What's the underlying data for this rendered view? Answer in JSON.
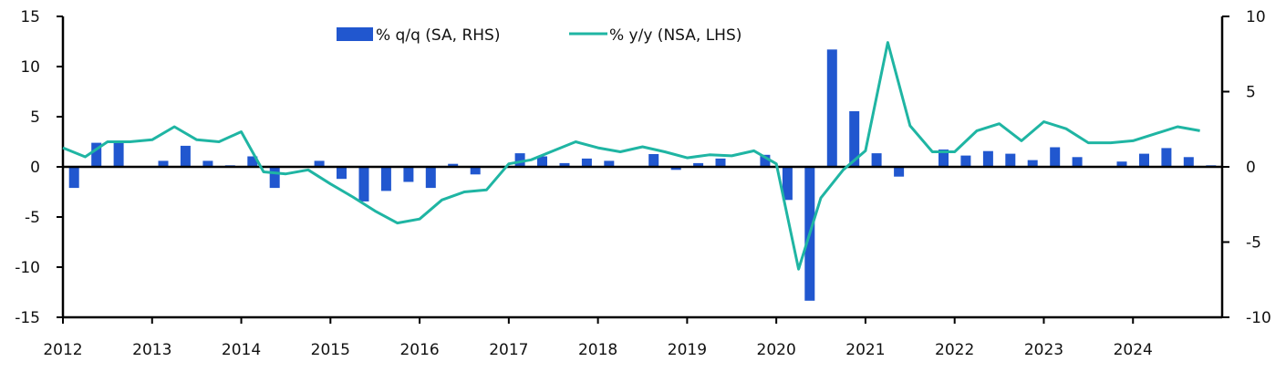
{
  "chart_data": {
    "type": "bar+line",
    "title": "",
    "x_start_year": 2012,
    "x_tick_labels": [
      "2012",
      "2013",
      "2014",
      "2015",
      "2016",
      "2017",
      "2018",
      "2019",
      "2020",
      "2021",
      "2022",
      "2023",
      "2024"
    ],
    "left_axis": {
      "ylim": [
        -15,
        15
      ],
      "ticks": [
        "15",
        "10",
        "5",
        "0",
        "-5",
        "-10",
        "-15"
      ],
      "tick_values": [
        15,
        10,
        5,
        0,
        -5,
        -10,
        -15
      ]
    },
    "right_axis": {
      "ylim": [
        -10,
        10
      ],
      "ticks": [
        "10",
        "5",
        "0",
        "-5",
        "-10"
      ],
      "tick_values": [
        10,
        5,
        0,
        -5,
        -10
      ]
    },
    "legend": {
      "position": "top-center"
    },
    "series": [
      {
        "name": "% q/q (SA, RHS)",
        "type": "bar",
        "axis": "right",
        "color": "#2157cf",
        "values": [
          -1.4,
          1.6,
          1.6,
          0,
          0.4,
          1.4,
          0.4,
          0.1,
          0.7,
          -1.4,
          0,
          0.4,
          -0.8,
          -2.3,
          -1.6,
          -1.0,
          -1.4,
          0.2,
          -0.5,
          0,
          0.9,
          0.7,
          0.25,
          0.55,
          0.4,
          0,
          0.85,
          -0.2,
          0.25,
          0.55,
          0,
          0.8,
          -2.2,
          -8.9,
          7.8,
          3.7,
          0.9,
          -0.65,
          0,
          1.15,
          0.75,
          1.05,
          0.87,
          0.45,
          1.3,
          0.65,
          0,
          0.35,
          0.87,
          1.25,
          0.65,
          0.1
        ]
      },
      {
        "name": "% y/y (NSA, LHS)",
        "type": "line",
        "axis": "left",
        "color": "#1fb5a3",
        "values": [
          1.9,
          1.0,
          2.5,
          2.5,
          2.7,
          4.0,
          2.7,
          2.5,
          3.5,
          -0.5,
          -0.7,
          -0.3,
          -1.7,
          -3.0,
          -4.4,
          -5.6,
          -5.2,
          -3.3,
          -2.5,
          -2.3,
          0.3,
          0.7,
          1.6,
          2.5,
          1.9,
          1.5,
          2.0,
          1.5,
          0.9,
          1.2,
          1.1,
          1.6,
          0.3,
          -10.2,
          -3.1,
          -0.3,
          1.6,
          12.4,
          4.1,
          1.5,
          1.5,
          3.6,
          4.3,
          2.6,
          4.5,
          3.8,
          2.4,
          2.4,
          2.6,
          3.3,
          4.0,
          3.6
        ]
      }
    ],
    "x": [
      "2012Q1",
      "2012Q2",
      "2012Q3",
      "2012Q4",
      "2013Q1",
      "2013Q2",
      "2013Q3",
      "2013Q4",
      "2014Q1",
      "2014Q2",
      "2014Q3",
      "2014Q4",
      "2015Q1",
      "2015Q2",
      "2015Q3",
      "2015Q4",
      "2016Q1",
      "2016Q2",
      "2016Q3",
      "2016Q4",
      "2017Q1",
      "2017Q2",
      "2017Q3",
      "2017Q4",
      "2018Q1",
      "2018Q2",
      "2018Q3",
      "2018Q4",
      "2019Q1",
      "2019Q2",
      "2019Q3",
      "2019Q4",
      "2020Q1",
      "2020Q2",
      "2020Q3",
      "2020Q4",
      "2021Q1",
      "2021Q2",
      "2021Q3",
      "2021Q4",
      "2022Q1",
      "2022Q2",
      "2022Q3",
      "2022Q4",
      "2023Q1",
      "2023Q2",
      "2023Q3",
      "2023Q4",
      "2024Q1",
      "2024Q2",
      "2024Q3",
      "2024Q4"
    ],
    "grid": false
  }
}
